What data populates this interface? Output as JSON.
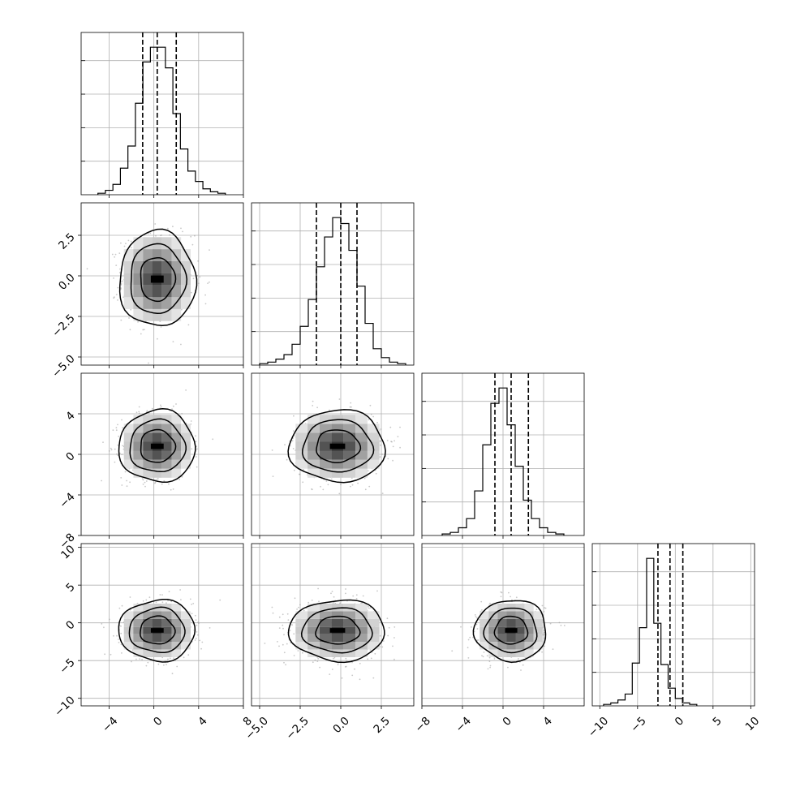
{
  "chart_data": {
    "type": "corner",
    "title": "",
    "grid": true,
    "n_params": 4,
    "params": [
      {
        "label": "",
        "range": [
          -6.5,
          8.0
        ],
        "ticks": [
          -4,
          0,
          4,
          8
        ],
        "tick_labels": [
          "−4",
          "0",
          "4",
          "8"
        ],
        "quantiles": [
          -1.0,
          0.3,
          2.0
        ],
        "hist_edges_start": -5.0,
        "hist_bin_width": 0.67,
        "hist_counts": [
          1,
          3,
          7,
          18,
          33,
          62,
          90,
          100,
          100,
          86,
          55,
          31,
          16,
          9,
          4,
          2,
          1
        ]
      },
      {
        "label": "",
        "range": [
          -5.5,
          4.5
        ],
        "ticks": [
          -5.0,
          -2.5,
          0.0,
          2.5
        ],
        "tick_labels": [
          "−5.0",
          "−2.5",
          "0.0",
          "2.5"
        ],
        "quantiles": [
          -1.5,
          0.0,
          1.0
        ],
        "hist_edges_start": -5.0,
        "hist_bin_width": 0.5,
        "hist_counts": [
          1,
          2,
          4,
          7,
          14,
          26,
          44,
          66,
          86,
          99,
          95,
          77,
          53,
          28,
          11,
          5,
          2,
          1
        ]
      },
      {
        "label": "",
        "range": [
          -8,
          8
        ],
        "ticks": [
          -8,
          -4,
          0,
          4
        ],
        "tick_labels": [
          "−8",
          "−4",
          "0",
          "4"
        ],
        "quantiles": [
          -0.8,
          0.8,
          2.5
        ],
        "hist_edges_start": -6.0,
        "hist_bin_width": 0.8,
        "hist_counts": [
          1,
          2,
          5,
          11,
          29,
          59,
          86,
          96,
          72,
          45,
          23,
          11,
          5,
          2,
          1
        ]
      },
      {
        "label": "",
        "range": [
          -11,
          10.5
        ],
        "ticks": [
          -10,
          -5,
          0,
          5,
          10
        ],
        "tick_labels": [
          "−10",
          "−5",
          "0",
          "5",
          "10"
        ],
        "quantiles": [
          -2.3,
          -0.7,
          1.0
        ],
        "hist_edges_start": -9.5,
        "hist_bin_width": 0.95,
        "hist_counts": [
          1,
          2,
          4,
          8,
          29,
          53,
          100,
          56,
          28,
          12,
          5,
          2,
          1
        ]
      }
    ],
    "cov": [
      [
        2.4,
        0,
        0,
        0
      ],
      [
        0,
        1.8,
        0,
        0
      ],
      [
        0,
        0,
        2.6,
        0
      ],
      [
        0,
        0,
        0,
        3.4
      ]
    ],
    "means": [
      0.3,
      -0.2,
      0.8,
      -1.0
    ],
    "contour_levels_sigma": [
      1.0,
      1.6,
      2.2
    ],
    "scatter_color": "#9a9a9a",
    "density_color": "#000000"
  }
}
